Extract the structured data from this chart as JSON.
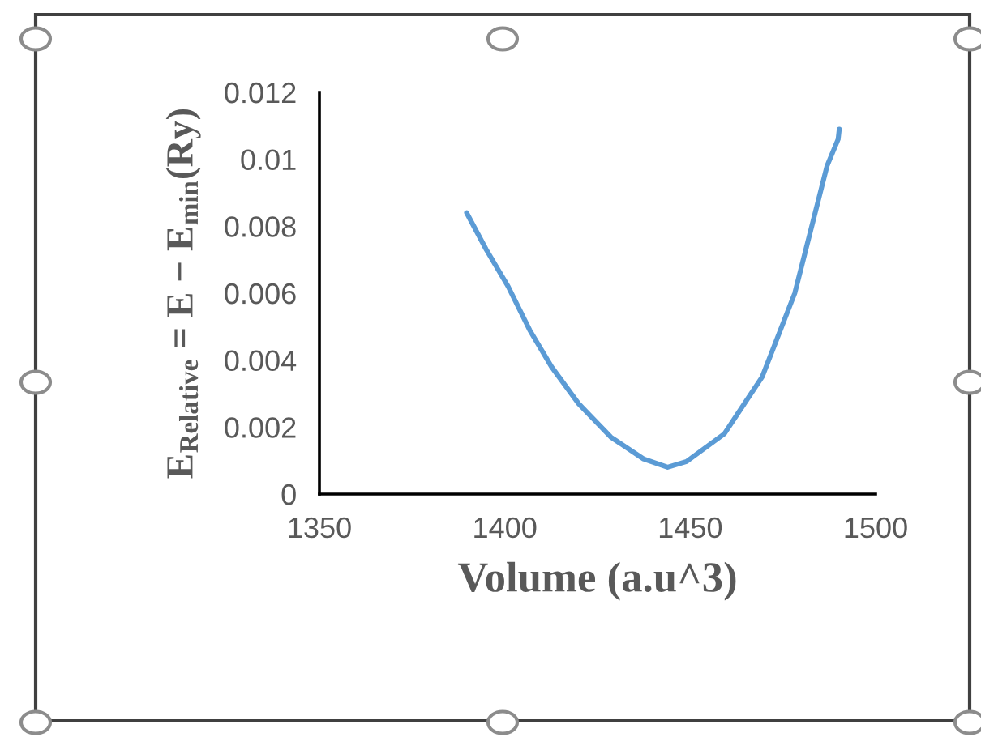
{
  "chart_data": {
    "type": "line",
    "xlabel": "Volume (a.u^3)",
    "ylabel": "E$_{Relative}$ = E − E$_{min}$(Ry)",
    "series": [
      {
        "color": "#5b9bd5",
        "x": [
          1389.7,
          1395,
          1400.9,
          1406.7,
          1412.6,
          1419.9,
          1428.6,
          1437.4,
          1443.9,
          1449,
          1459.2,
          1469.4,
          1478.2,
          1486.9,
          1489.9,
          1490.2
        ],
        "values": [
          0.0084,
          0.0073,
          0.0062,
          0.0049,
          0.0038,
          0.0027,
          0.0017,
          0.00105,
          0.0008,
          0.00097,
          0.0018,
          0.0035,
          0.006,
          0.0098,
          0.0106,
          0.0109
        ]
      }
    ],
    "xlim": [
      1350,
      1500
    ],
    "xticks": [
      1350,
      1400,
      1450,
      1500
    ],
    "ylim": [
      0,
      0.012
    ],
    "yticks": [
      0,
      0.002,
      0.004,
      0.006,
      0.008,
      0.01,
      0.012
    ],
    "grid": false,
    "legend": false,
    "marker": "none",
    "line_style": "solid"
  }
}
